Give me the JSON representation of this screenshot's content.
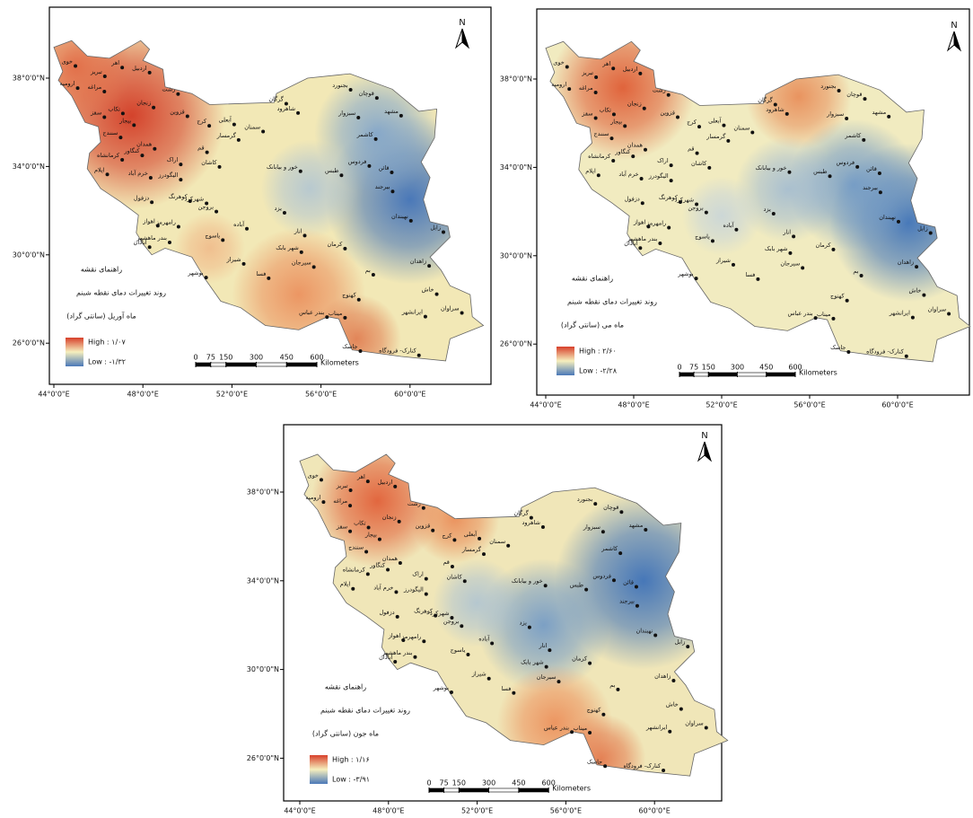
{
  "panels": [
    {
      "legend_title": "راهنمای نقشه",
      "legend_subtitle": "روند تغییرات دمای نقطه شبنم",
      "legend_month": "ماه آوریل  (سانتی گراد)",
      "high": "High : ۱/۰۷",
      "low": "Low : -۱/۳۲"
    },
    {
      "legend_title": "راهنمای نقشه",
      "legend_subtitle": "روند تغییرات دمای نقطه شبنم",
      "legend_month": "ماه می  (سانتی گراد)",
      "high": "High : ۲/۶۰",
      "low": "Low : -۲/۲۸"
    },
    {
      "legend_title": "راهنمای نقشه",
      "legend_subtitle": "روند تغییرات دمای نقطه شبنم",
      "legend_month": "ماه جون  (سانتی گراد)",
      "high": "High : ۱/۱۶",
      "low": "Low : -۳/۹۱"
    }
  ],
  "graticule": {
    "lon_ticks": [
      {
        "value": 44,
        "label": "44°0'0\"E"
      },
      {
        "value": 48,
        "label": "48°0'0\"E"
      },
      {
        "value": 52,
        "label": "52°0'0\"E"
      },
      {
        "value": 56,
        "label": "56°0'0\"E"
      },
      {
        "value": 60,
        "label": "60°0'0\"E"
      }
    ],
    "lat_ticks": [
      {
        "value": 38,
        "label": "38°0'0\"N"
      },
      {
        "value": 34,
        "label": "34°0'0\"N"
      },
      {
        "value": 30,
        "label": "30°0'0\"N"
      },
      {
        "value": 26,
        "label": "26°0'0\"N"
      }
    ]
  },
  "scale_bar": {
    "ticks": [
      0,
      75,
      150,
      300,
      450,
      600
    ],
    "unit": "Kilometers"
  },
  "north": "N",
  "cities": [
    "خوی",
    "اهر",
    "تبریز",
    "مراغه",
    "ارومیه",
    "اردبیل",
    "زنجان",
    "رشت",
    "تکاب",
    "سقز",
    "بیجار",
    "قزوین",
    "کرج",
    "سنندج",
    "همدان",
    "کنگاور",
    "کرمانشاه",
    "ایلام",
    "خرم آباد",
    "اراک",
    "قم",
    "آبعلی",
    "سمنان",
    "شاهرود",
    "گرگان",
    "بجنورد",
    "قوچان",
    "مشهد",
    "سبزوار",
    "کاشمر",
    "کاشان",
    "گرمسار",
    "شهرکرد",
    "کوهرنگ",
    "یزد",
    "طبس",
    "خور و بیابانک",
    "فردوس",
    "قائن",
    "بیرجند",
    "نهبندان",
    "زابل",
    "زاهدان",
    "بم",
    "کرمان",
    "انار",
    "شهر بابک",
    "سیرجان",
    "آباده",
    "یاسوج",
    "شیراز",
    "فسا",
    "بوشهر",
    "اهواز",
    "آبادان",
    "بندر ماهشهر",
    "رامهرمز",
    "دزفول",
    "کهنوج",
    "میناب",
    "بندر عباس",
    "جاسک",
    "ایرانشهر",
    "سراوان",
    "خاش",
    "کنارک- فرودگاه",
    "بروجن",
    "الیگودرز"
  ]
}
